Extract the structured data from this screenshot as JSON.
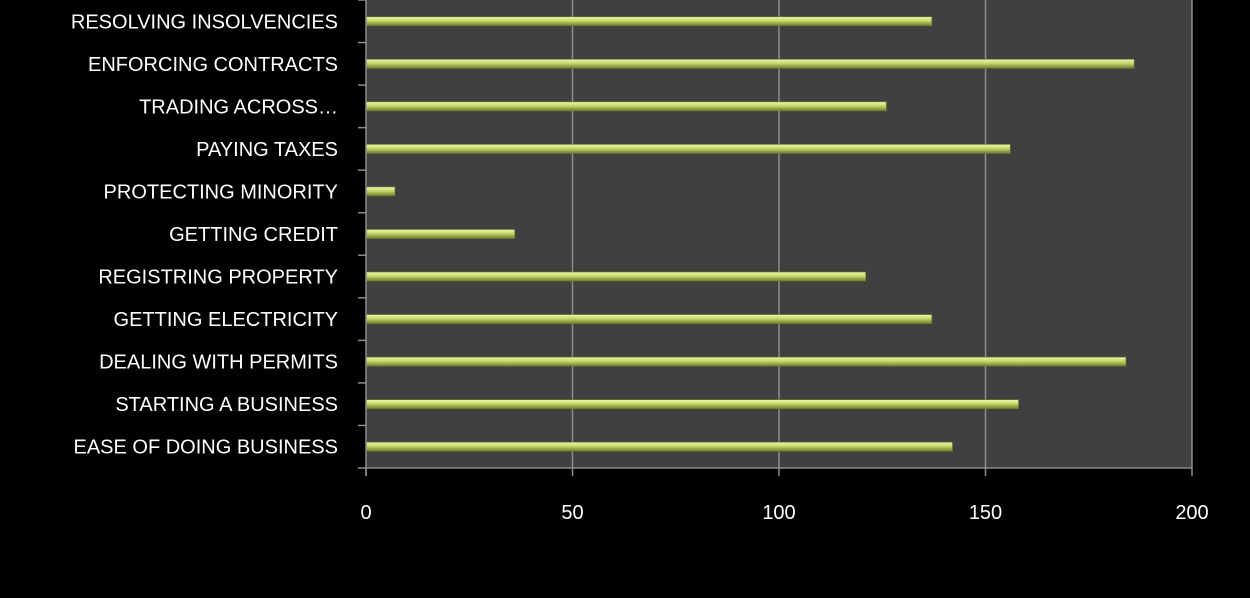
{
  "colors": {
    "page_background": "#000000",
    "plot_background": "#404040",
    "gridline": "#8c8c8c",
    "axis": "#8c8c8c",
    "bar_fill": "#c3d86b",
    "bar_highlight": "#eef7b0",
    "bar_shadow": "#6f7d2c",
    "text": "#ffffff"
  },
  "chart_data": {
    "type": "bar",
    "orientation": "horizontal",
    "title": "",
    "xlabel": "",
    "ylabel": "",
    "xlim": [
      0,
      200
    ],
    "x_ticks": [
      0,
      50,
      100,
      150,
      200
    ],
    "grid": true,
    "legend": "none",
    "categories": [
      "EASE OF DOING BUSINESS",
      "STARTING A BUSINESS",
      "DEALING WITH PERMITS",
      "GETTING ELECTRICITY",
      "REGISTRING PROPERTY",
      "GETTING CREDIT",
      "PROTECTING MINORITY",
      "PAYING TAXES",
      "TRADING ACROSS…",
      "ENFORCING CONTRACTS",
      "RESOLVING INSOLVENCIES"
    ],
    "values": [
      142,
      158,
      184,
      137,
      121,
      36,
      7,
      156,
      126,
      186,
      137
    ]
  }
}
